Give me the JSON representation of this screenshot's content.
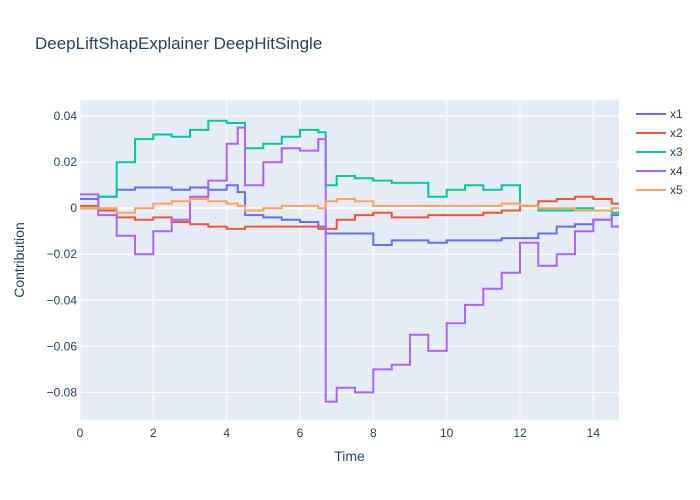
{
  "chart_data": {
    "type": "line",
    "line_shape": "step",
    "title": "DeepLiftShapExplainer DeepHitSingle",
    "xlabel": "Time",
    "ylabel": "Contribution",
    "xlim": [
      0,
      14.7
    ],
    "ylim": [
      -0.092,
      0.047
    ],
    "x_ticks": [
      0,
      2,
      4,
      6,
      8,
      10,
      12,
      14
    ],
    "y_ticks": [
      -0.08,
      -0.06,
      -0.04,
      -0.02,
      0,
      0.02,
      0.04
    ],
    "y_tick_labels": [
      "−0.08",
      "−0.06",
      "−0.04",
      "−0.02",
      "0",
      "0.02",
      "0.04"
    ],
    "grid": true,
    "legend_position": "right",
    "x": [
      0,
      0.5,
      1,
      1.5,
      2,
      2.5,
      3,
      3.5,
      4,
      4.3,
      4.5,
      5,
      5.5,
      6,
      6.5,
      6.7,
      7,
      7.5,
      8,
      8.5,
      9,
      9.5,
      10,
      10.5,
      11,
      11.5,
      12,
      12.5,
      13,
      13.5,
      14,
      14.5
    ],
    "series": [
      {
        "name": "x1",
        "color": "#636efa",
        "values": [
          0.004,
          0.005,
          0.008,
          0.009,
          0.009,
          0.008,
          0.009,
          0.008,
          0.01,
          0.007,
          -0.003,
          -0.004,
          -0.005,
          -0.006,
          -0.008,
          -0.011,
          -0.011,
          -0.011,
          -0.016,
          -0.014,
          -0.014,
          -0.015,
          -0.014,
          -0.014,
          -0.014,
          -0.013,
          -0.013,
          -0.011,
          -0.008,
          -0.007,
          -0.005,
          -0.003
        ]
      },
      {
        "name": "x2",
        "color": "#ef553b",
        "values": [
          0.001,
          -0.001,
          -0.004,
          -0.005,
          -0.004,
          -0.006,
          -0.007,
          -0.008,
          -0.009,
          -0.009,
          -0.008,
          -0.008,
          -0.008,
          -0.008,
          -0.009,
          -0.009,
          -0.005,
          -0.003,
          -0.002,
          -0.004,
          -0.004,
          -0.003,
          -0.003,
          -0.003,
          -0.002,
          -0.001,
          0.001,
          0.003,
          0.004,
          0.005,
          0.004,
          0.002
        ]
      },
      {
        "name": "x3",
        "color": "#00cc96",
        "values": [
          0,
          0.005,
          0.02,
          0.03,
          0.032,
          0.031,
          0.034,
          0.038,
          0.037,
          0.037,
          0.026,
          0.028,
          0.031,
          0.034,
          0.033,
          0.01,
          0.014,
          0.013,
          0.012,
          0.011,
          0.011,
          0.005,
          0.008,
          0.01,
          0.008,
          0.01,
          0.001,
          -0.001,
          -0.001,
          0.0,
          -0.001,
          -0.002
        ]
      },
      {
        "name": "x4",
        "color": "#ab63fa",
        "values": [
          0.006,
          -0.003,
          -0.012,
          -0.02,
          -0.01,
          -0.005,
          0.005,
          0.012,
          0.028,
          0.035,
          0.01,
          0.02,
          0.026,
          0.025,
          0.03,
          -0.084,
          -0.078,
          -0.08,
          -0.07,
          -0.068,
          -0.055,
          -0.062,
          -0.05,
          -0.042,
          -0.035,
          -0.028,
          -0.015,
          -0.025,
          -0.02,
          -0.01,
          -0.005,
          -0.008
        ]
      },
      {
        "name": "x5",
        "color": "#ffa15a",
        "values": [
          0.0,
          0.0,
          -0.002,
          0.0,
          0.002,
          0.003,
          0.004,
          0.003,
          0.002,
          0.001,
          -0.001,
          0.0,
          0.001,
          0.001,
          0.0,
          0.003,
          0.004,
          0.003,
          0.001,
          0.001,
          0.001,
          0.001,
          0.001,
          0.001,
          0.001,
          0.002,
          0.001,
          0.0,
          0.0,
          -0.001,
          -0.001,
          0.0
        ]
      }
    ]
  }
}
